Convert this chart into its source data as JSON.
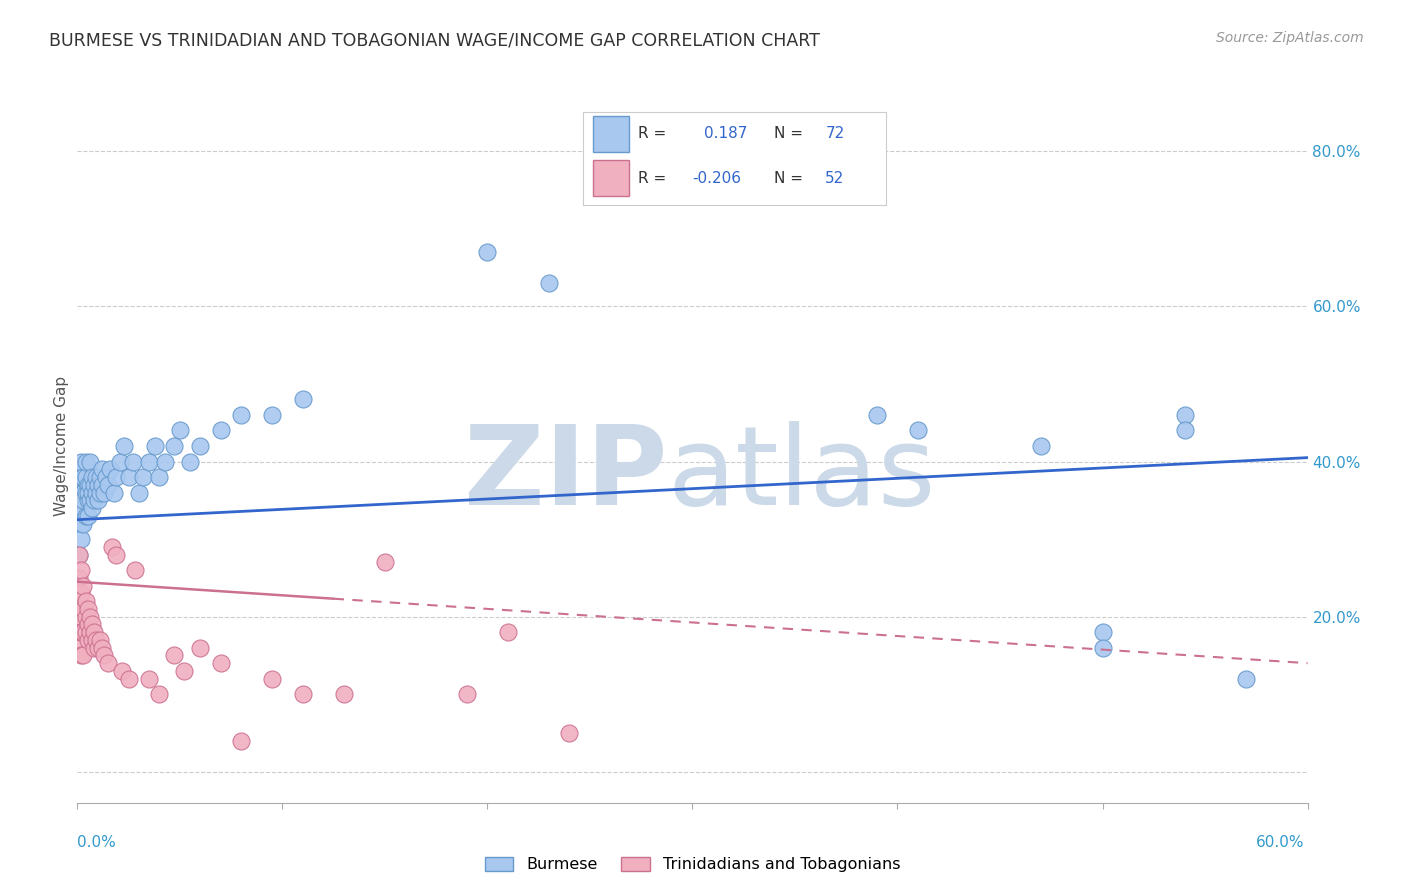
{
  "title": "BURMESE VS TRINIDADIAN AND TOBAGONIAN WAGE/INCOME GAP CORRELATION CHART",
  "source": "Source: ZipAtlas.com",
  "ylabel": "Wage/Income Gap",
  "xmin": 0.0,
  "xmax": 0.6,
  "ymin": -0.04,
  "ymax": 0.88,
  "burmese_R": 0.187,
  "burmese_N": 72,
  "trinidadian_R": -0.206,
  "trinidadian_N": 52,
  "blue_scatter_color": "#a8c8f0",
  "blue_edge_color": "#6699cc",
  "pink_scatter_color": "#f0b0c0",
  "pink_edge_color": "#cc7090",
  "blue_line_color": "#3366cc",
  "pink_line_color": "#cc7090",
  "watermark_color": "#ccd9e8",
  "background_color": "#ffffff",
  "burmese_x": [
    0.001,
    0.001,
    0.001,
    0.001,
    0.002,
    0.002,
    0.002,
    0.002,
    0.002,
    0.003,
    0.003,
    0.003,
    0.003,
    0.003,
    0.004,
    0.004,
    0.004,
    0.004,
    0.005,
    0.005,
    0.005,
    0.005,
    0.006,
    0.006,
    0.006,
    0.007,
    0.007,
    0.007,
    0.008,
    0.008,
    0.009,
    0.009,
    0.01,
    0.01,
    0.011,
    0.011,
    0.012,
    0.012,
    0.013,
    0.014,
    0.015,
    0.016,
    0.018,
    0.019,
    0.021,
    0.023,
    0.025,
    0.027,
    0.03,
    0.032,
    0.035,
    0.038,
    0.04,
    0.043,
    0.047,
    0.05,
    0.055,
    0.06,
    0.07,
    0.08,
    0.095,
    0.11,
    0.2,
    0.23,
    0.39,
    0.41,
    0.47,
    0.5,
    0.5,
    0.54,
    0.54,
    0.57
  ],
  "burmese_y": [
    0.33,
    0.35,
    0.37,
    0.28,
    0.32,
    0.3,
    0.36,
    0.38,
    0.4,
    0.34,
    0.32,
    0.36,
    0.38,
    0.35,
    0.33,
    0.36,
    0.38,
    0.4,
    0.35,
    0.37,
    0.33,
    0.36,
    0.35,
    0.37,
    0.4,
    0.34,
    0.36,
    0.38,
    0.35,
    0.37,
    0.36,
    0.38,
    0.35,
    0.37,
    0.36,
    0.38,
    0.37,
    0.39,
    0.36,
    0.38,
    0.37,
    0.39,
    0.36,
    0.38,
    0.4,
    0.42,
    0.38,
    0.4,
    0.36,
    0.38,
    0.4,
    0.42,
    0.38,
    0.4,
    0.42,
    0.44,
    0.4,
    0.42,
    0.44,
    0.46,
    0.46,
    0.48,
    0.67,
    0.63,
    0.46,
    0.44,
    0.42,
    0.18,
    0.16,
    0.46,
    0.44,
    0.12
  ],
  "trinidadian_x": [
    0.001,
    0.001,
    0.001,
    0.001,
    0.001,
    0.001,
    0.002,
    0.002,
    0.002,
    0.002,
    0.002,
    0.003,
    0.003,
    0.003,
    0.003,
    0.004,
    0.004,
    0.004,
    0.005,
    0.005,
    0.005,
    0.006,
    0.006,
    0.007,
    0.007,
    0.008,
    0.008,
    0.009,
    0.01,
    0.011,
    0.012,
    0.013,
    0.015,
    0.017,
    0.019,
    0.022,
    0.025,
    0.028,
    0.035,
    0.04,
    0.047,
    0.052,
    0.06,
    0.07,
    0.08,
    0.095,
    0.11,
    0.13,
    0.15,
    0.19,
    0.21,
    0.24
  ],
  "trinidadian_y": [
    0.28,
    0.25,
    0.22,
    0.2,
    0.18,
    0.16,
    0.26,
    0.23,
    0.2,
    0.18,
    0.15,
    0.24,
    0.21,
    0.18,
    0.15,
    0.22,
    0.2,
    0.18,
    0.21,
    0.19,
    0.17,
    0.2,
    0.18,
    0.19,
    0.17,
    0.18,
    0.16,
    0.17,
    0.16,
    0.17,
    0.16,
    0.15,
    0.14,
    0.29,
    0.28,
    0.13,
    0.12,
    0.26,
    0.12,
    0.1,
    0.15,
    0.13,
    0.16,
    0.14,
    0.04,
    0.12,
    0.1,
    0.1,
    0.27,
    0.1,
    0.18,
    0.05
  ]
}
